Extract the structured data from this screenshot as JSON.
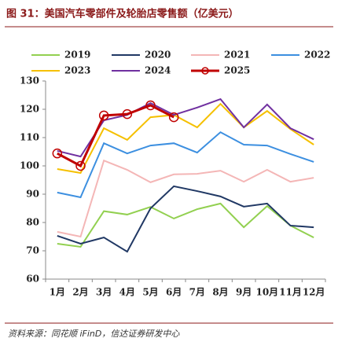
{
  "chart_data": {
    "type": "line",
    "title": "图 31：美国汽车零部件及轮胎店零售额（亿美元）",
    "source": "资料来源：同花顺 iFinD，信达证券研发中心",
    "categories": [
      "1月",
      "2月",
      "3月",
      "4月",
      "5月",
      "6月",
      "7月",
      "8月",
      "9月",
      "10月",
      "11月",
      "12月"
    ],
    "ylim": [
      60,
      130
    ],
    "yticks": [
      60,
      70,
      80,
      90,
      100,
      110,
      120,
      130
    ],
    "grid": false,
    "series": [
      {
        "name": "2019",
        "color": "#92d050",
        "values": [
          72.5,
          71.4,
          84,
          82.8,
          85.5,
          81.4,
          84.7,
          86.7,
          78.3,
          85.8,
          78.9,
          74.7
        ]
      },
      {
        "name": "2020",
        "color": "#203864",
        "values": [
          75.3,
          72.5,
          74.7,
          69.7,
          85,
          92.8,
          91.1,
          89.2,
          85.6,
          86.7,
          78.9,
          78.3
        ]
      },
      {
        "name": "2021",
        "color": "#f4b6b6",
        "values": [
          76.7,
          75,
          101.9,
          98.6,
          94.2,
          97,
          97.2,
          98.3,
          94.4,
          98.6,
          94.4,
          95.8
        ]
      },
      {
        "name": "2022",
        "color": "#3c8fe0",
        "values": [
          90.6,
          88.9,
          108,
          104.4,
          107.2,
          108,
          104.7,
          111.9,
          107.5,
          107.2,
          104.2,
          101.4
        ]
      },
      {
        "name": "2023",
        "color": "#f5c000",
        "values": [
          98.9,
          97.5,
          113.3,
          109.2,
          117.2,
          118,
          113.6,
          121.9,
          113.6,
          119.4,
          113,
          107.5
        ]
      },
      {
        "name": "2024",
        "color": "#7030a0",
        "values": [
          105.3,
          103.3,
          116.1,
          118,
          122.2,
          118,
          120.6,
          123.6,
          113.6,
          121.7,
          113.3,
          109.4
        ]
      },
      {
        "name": "2025",
        "color": "#c00000",
        "marker": "circle",
        "values": [
          104.4,
          100,
          117.8,
          118.3,
          121.4,
          117.2,
          null,
          null,
          null,
          null,
          null,
          null
        ]
      }
    ]
  }
}
